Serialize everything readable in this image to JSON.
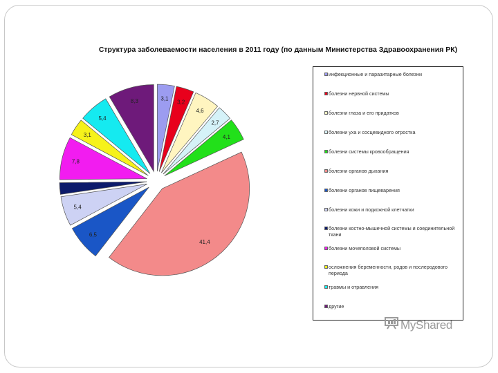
{
  "chart_data": {
    "type": "pie",
    "title": "Структура заболеваемости населения в 2011 году (по данным Министерства Здравоохранения РК)",
    "slices": [
      {
        "label": "инфекционные и паразитарные болезни",
        "value": 3.1,
        "value_label": "3,1",
        "color": "#9c9cf0"
      },
      {
        "label": "болезни нервной системы",
        "value": 3.2,
        "value_label": "3,2",
        "color": "#e8001c"
      },
      {
        "label": "болезни глаза и его придатков",
        "value": 4.6,
        "value_label": "4,6",
        "color": "#fff5c0"
      },
      {
        "label": "болезни уха и сосцевидного отростка",
        "value": 2.7,
        "value_label": "2,7",
        "color": "#d5f2f8"
      },
      {
        "label": "болезни системы кровообращения",
        "value": 4.1,
        "value_label": "4,1",
        "color": "#22e01a"
      },
      {
        "label": "болезни органов дыхания",
        "value": 41.4,
        "value_label": "41,4",
        "color": "#f38a8a"
      },
      {
        "label": "болезни органов пищеварения",
        "value": 6.5,
        "value_label": "6,5",
        "color": "#1a56c6"
      },
      {
        "label": "болезни кожи и подкожной клетчатки",
        "value": 5.4,
        "value_label": "5,4",
        "color": "#cdd2f4"
      },
      {
        "label": "болезни костно-мышечной системы и соединительной ткани",
        "value": 2.1,
        "value_label": "",
        "color": "#0c1a6b"
      },
      {
        "label": "болезни мочеполовой системы",
        "value": 7.8,
        "value_label": "7,8",
        "color": "#f21cf0"
      },
      {
        "label": "осложнения беременности, родов и послеродового периода",
        "value": 3.1,
        "value_label": "3,1",
        "color": "#f6f21a"
      },
      {
        "label": "травмы и отравления",
        "value": 5.4,
        "value_label": "5,4",
        "color": "#15eaf0"
      },
      {
        "label": "другие",
        "value": 8.3,
        "value_label": "8,3",
        "color": "#6e1a7a"
      }
    ],
    "legend_position": "right"
  },
  "watermark": {
    "text": "MyShared",
    "icon": "presentation-board-icon"
  }
}
